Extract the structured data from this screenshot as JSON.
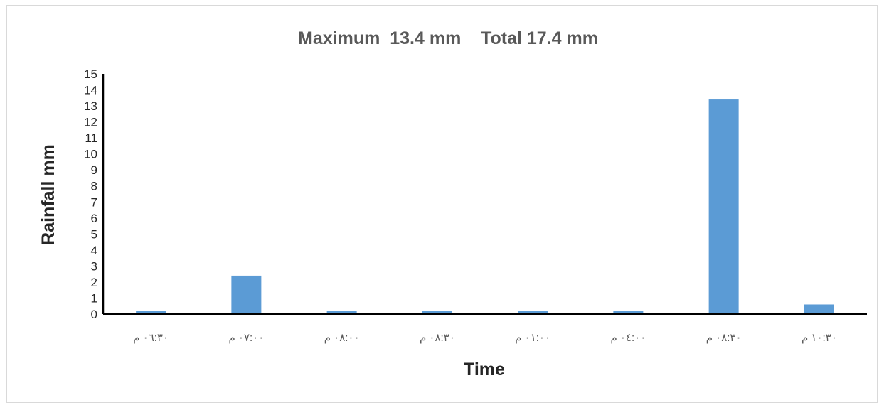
{
  "chart_data": {
    "type": "bar",
    "title": "Maximum  13.4 mm    Total 17.4 mm",
    "xlabel": "Time",
    "ylabel": "Rainfall mm",
    "categories": [
      "٠٦:٣٠ م",
      "٠٧:٠٠ م",
      "٠٨:٠٠ م",
      "٠٨:٣٠ م",
      "٠١:٠٠ م",
      "٠٤:٠٠ م",
      "٠٨:٣٠ م",
      "١٠:٣٠ م"
    ],
    "values": [
      0.2,
      2.4,
      0.2,
      0.2,
      0.2,
      0.2,
      13.4,
      0.6
    ],
    "ylim": [
      0,
      15
    ],
    "yticks": [
      "0",
      "1",
      "2",
      "3",
      "4",
      "5",
      "6",
      "7",
      "8",
      "9",
      "10",
      "11",
      "12",
      "13",
      "14",
      "15"
    ],
    "grid": false,
    "legend": "none",
    "bar_color": "#5b9bd5",
    "axis_color": "#000000"
  }
}
